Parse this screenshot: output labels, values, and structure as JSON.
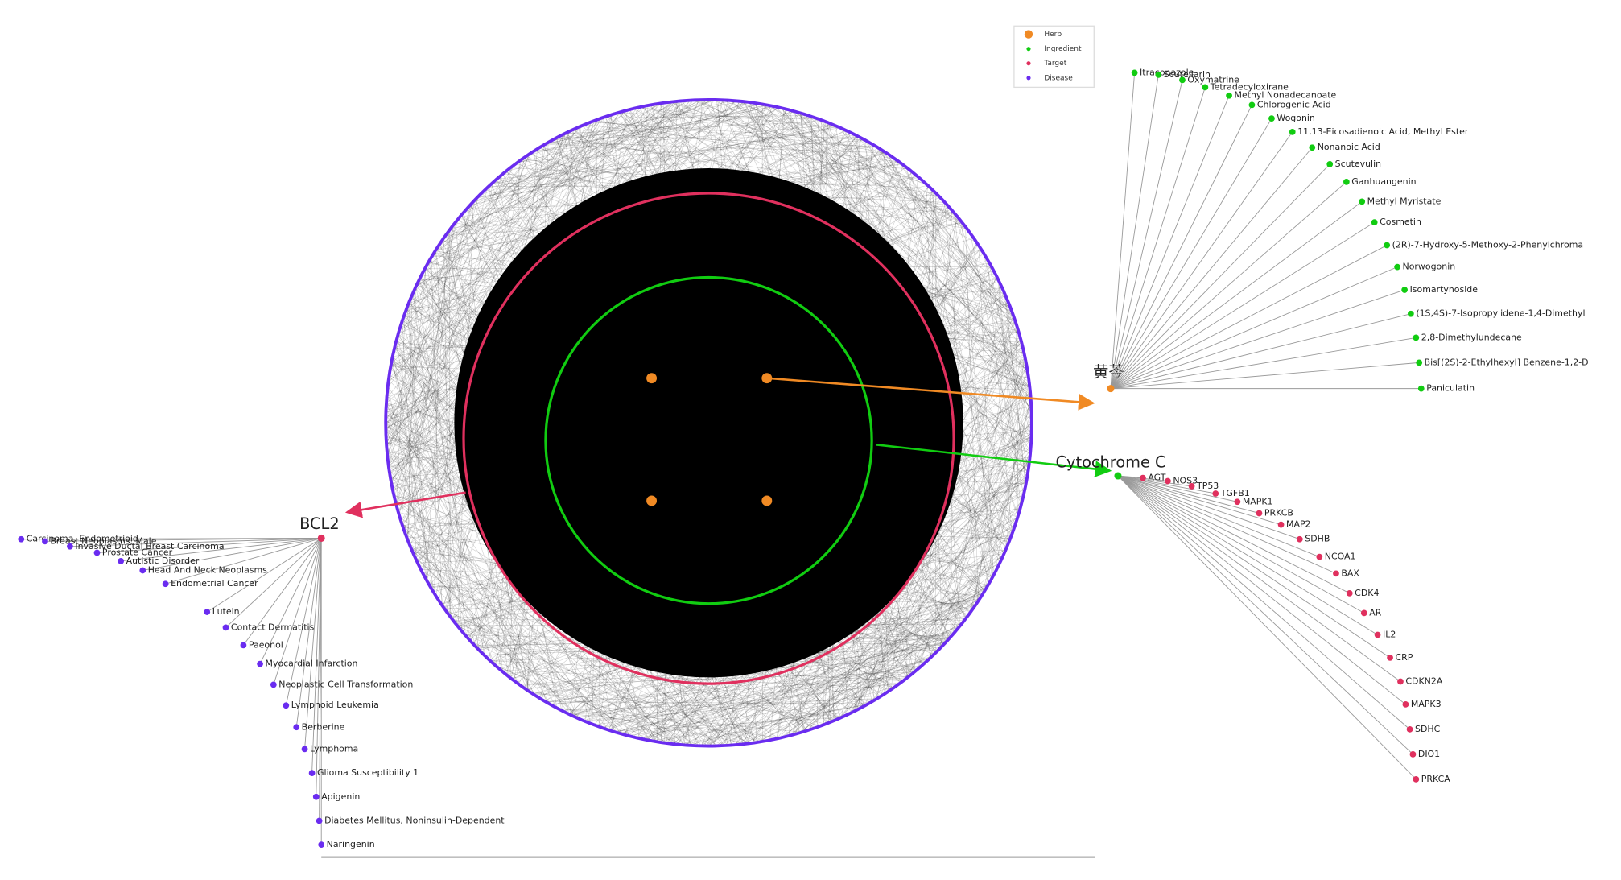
{
  "legend": [
    "Herb",
    "Ingredient",
    "Target",
    "Disease"
  ],
  "herb_fan": {
    "label": "黄芩",
    "nodes": [
      "Itraconazole",
      "Scutellarin",
      "Oxymatrine",
      "Tetradecyloxirane",
      "Methyl Nonadecanoate",
      "Chlorogenic Acid",
      "Wogonin",
      "11,13-Eicosadienoic Acid, Methyl Ester",
      "Nonanoic Acid",
      "Scutevulin",
      "Ganhuangenin",
      "Methyl Myristate",
      "Cosmetin",
      "(2R)-7-Hydroxy-5-Methoxy-2-Phenylchroma",
      "Norwogonin",
      "Isomartynoside",
      "(1S,4S)-7-Isopropylidene-1,4-Dimethyl",
      "2,8-Dimethylundecane",
      "Bis[(2S)-2-Ethylhexyl] Benzene-1,2-D",
      "Paniculatin"
    ]
  },
  "target_fan": {
    "label": "Cytochrome C",
    "nodes": [
      "AGT",
      "NOS3",
      "TP53",
      "TGFB1",
      "MAPK1",
      "PRKCB",
      "MAP2",
      "SDHB",
      "NCOA1",
      "BAX",
      "CDK4",
      "AR",
      "IL2",
      "CRP",
      "CDKN2A",
      "MAPK3",
      "SDHC",
      "DIO1",
      "PRKCA"
    ]
  },
  "disease_fan": {
    "label": "BCL2",
    "nodes": [
      "Carcinoma, Endometrioid",
      "Breast Neoplasms, Male",
      "Invasive Ductal Breast Carcinoma",
      "Prostate Cancer",
      "Autistic Disorder",
      "Head And Neck Neoplasms",
      "Endometrial Cancer",
      "Lutein",
      "Contact Dermatitis",
      "Paeonol",
      "Myocardial Infarction",
      "Neoplastic Cell Transformation",
      "Lymphoid Leukemia",
      "Berberine",
      "Lymphoma",
      "Glioma Susceptibility 1",
      "Apigenin",
      "Diabetes Mellitus, Noninsulin-Dependent",
      "Naringenin"
    ]
  }
}
